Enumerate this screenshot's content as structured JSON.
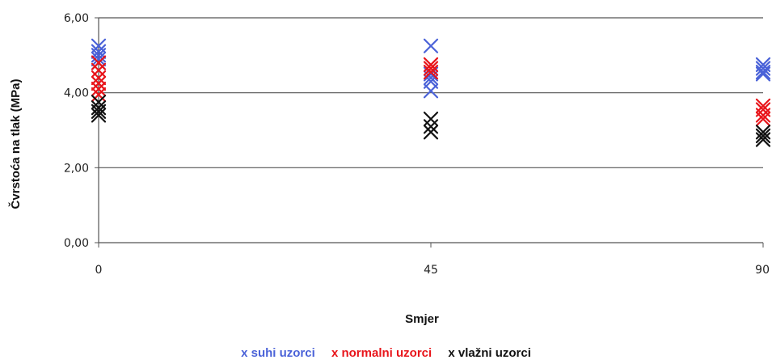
{
  "chart_data": {
    "type": "scatter",
    "title": "",
    "xlabel": "Smjer",
    "ylabel": "Čvrstoća  na tlak (MPa)",
    "x_ticks": [
      "0",
      "45",
      "90"
    ],
    "y_ticks": [
      "0,00",
      "2,00",
      "4,00",
      "6,00"
    ],
    "xlim": [
      0,
      90
    ],
    "ylim": [
      0,
      6
    ],
    "grid": true,
    "legend_position": "bottom",
    "marker": "x",
    "series": [
      {
        "name": "suhi uzorci",
        "color": "#4a62d8",
        "points": [
          {
            "x": 0,
            "y": 5.25
          },
          {
            "x": 0,
            "y": 5.1
          },
          {
            "x": 0,
            "y": 5.0
          },
          {
            "x": 0,
            "y": 4.9
          },
          {
            "x": 0,
            "y": 4.8
          },
          {
            "x": 45,
            "y": 5.25
          },
          {
            "x": 45,
            "y": 4.5
          },
          {
            "x": 45,
            "y": 4.4
          },
          {
            "x": 45,
            "y": 4.3
          },
          {
            "x": 45,
            "y": 4.05
          },
          {
            "x": 90,
            "y": 4.75
          },
          {
            "x": 90,
            "y": 4.65
          },
          {
            "x": 90,
            "y": 4.55
          },
          {
            "x": 90,
            "y": 4.5
          }
        ]
      },
      {
        "name": "normalni uzorci",
        "color": "#e8141a",
        "points": [
          {
            "x": 0,
            "y": 4.8
          },
          {
            "x": 0,
            "y": 4.6
          },
          {
            "x": 0,
            "y": 4.4
          },
          {
            "x": 0,
            "y": 4.25
          },
          {
            "x": 0,
            "y": 4.1
          },
          {
            "x": 0,
            "y": 3.95
          },
          {
            "x": 45,
            "y": 4.75
          },
          {
            "x": 45,
            "y": 4.65
          },
          {
            "x": 45,
            "y": 4.55
          },
          {
            "x": 90,
            "y": 3.65
          },
          {
            "x": 90,
            "y": 3.55
          },
          {
            "x": 90,
            "y": 3.4
          },
          {
            "x": 90,
            "y": 3.3
          }
        ]
      },
      {
        "name": "vlažni uzorci",
        "color": "#111111",
        "points": [
          {
            "x": 0,
            "y": 3.75
          },
          {
            "x": 0,
            "y": 3.6
          },
          {
            "x": 0,
            "y": 3.5
          },
          {
            "x": 0,
            "y": 3.4
          },
          {
            "x": 45,
            "y": 3.3
          },
          {
            "x": 45,
            "y": 3.1
          },
          {
            "x": 45,
            "y": 2.95
          },
          {
            "x": 90,
            "y": 2.95
          },
          {
            "x": 90,
            "y": 2.85
          },
          {
            "x": 90,
            "y": 2.75
          }
        ]
      }
    ]
  },
  "legend": {
    "marker": "x",
    "items": [
      {
        "label": "suhi uzorci",
        "color": "#4a62d8"
      },
      {
        "label": "normalni uzorci",
        "color": "#e8141a"
      },
      {
        "label": "vlažni uzorci",
        "color": "#111111"
      }
    ]
  }
}
